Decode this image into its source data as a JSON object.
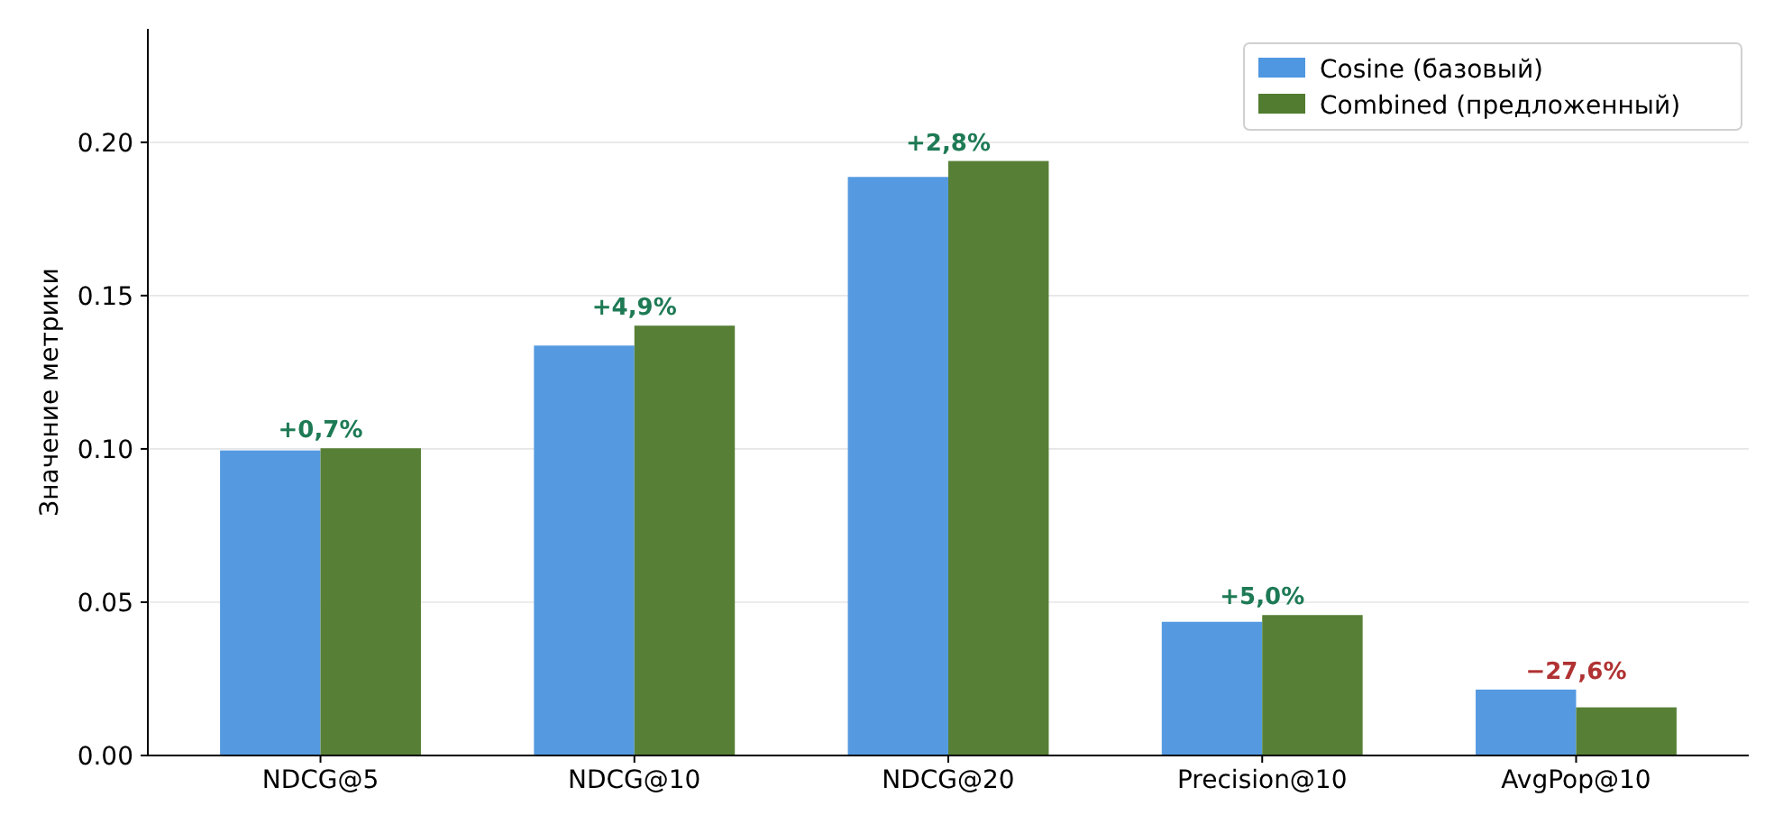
{
  "chart_data": {
    "type": "bar",
    "ylabel": "Значение метрики",
    "categories": [
      "NDCG@5",
      "NDCG@10",
      "NDCG@20",
      "Precision@10",
      "AvgPop@10"
    ],
    "series": [
      {
        "name": "Cosine (базовый)",
        "color": "#4f97e0",
        "values": [
          0.0995,
          0.1337,
          0.1887,
          0.0436,
          0.0215
        ]
      },
      {
        "name": "Combined (предложенный)",
        "color": "#527c2f",
        "values": [
          0.1002,
          0.1402,
          0.1939,
          0.0458,
          0.0157
        ]
      }
    ],
    "ylim": [
      0,
      0.237
    ],
    "yticks": [
      {
        "value": 0,
        "label": "0.00"
      },
      {
        "value": 0.05,
        "label": "0.05"
      },
      {
        "value": 0.1,
        "label": "0.10"
      },
      {
        "value": 0.15,
        "label": "0.15"
      },
      {
        "value": 0.2,
        "label": "0.20"
      }
    ],
    "grid": "y",
    "legend": "top right",
    "annotations": [
      {
        "text": "+0,7%",
        "x": "NDCG@5",
        "y": 0.1002
      },
      {
        "text": "+4,9%",
        "x": "NDCG@10",
        "y": 0.1402
      },
      {
        "text": "+2,8%",
        "x": "NDCG@20",
        "y": 0.1939
      },
      {
        "text": "+5,0%",
        "x": "Precision@10",
        "y": 0.0458
      },
      {
        "text": "−27,6%",
        "x": "AvgPop@10",
        "y": 0.0215
      }
    ]
  }
}
